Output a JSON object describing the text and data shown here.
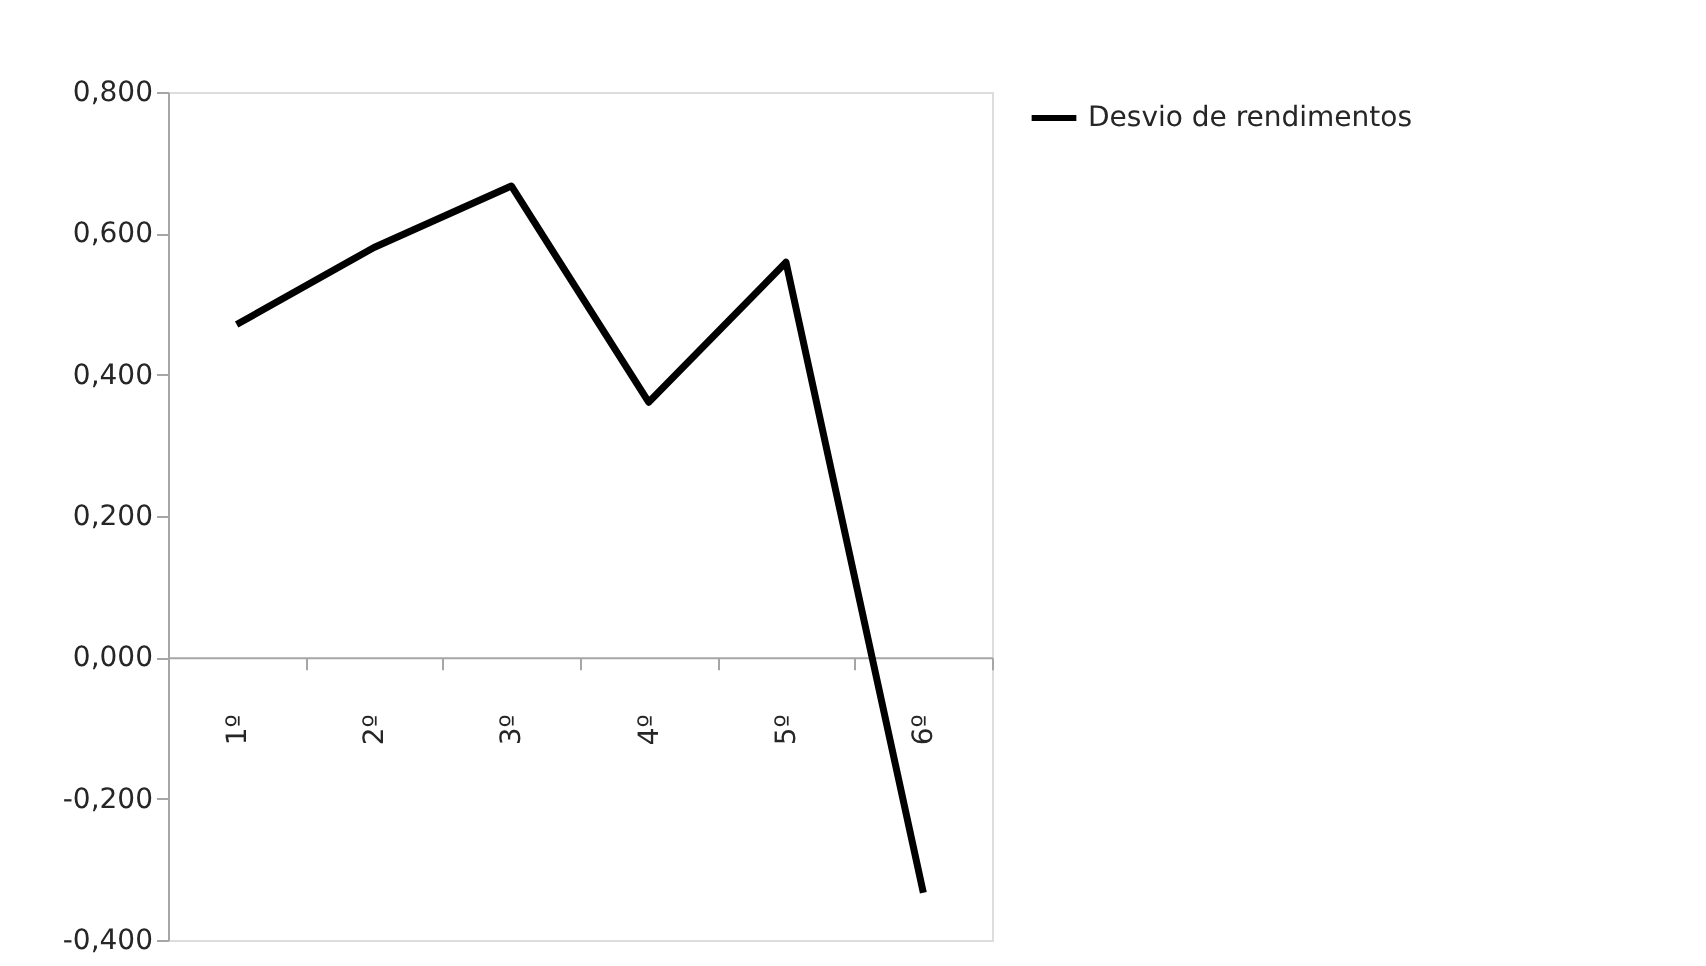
{
  "chart_data": {
    "type": "line",
    "categories": [
      "1º",
      "2º",
      "3º",
      "4º",
      "5º",
      "6º"
    ],
    "series": [
      {
        "name": "Desvio de rendimentos",
        "color": "#000000",
        "values": [
          0.471,
          0.58,
          0.667,
          0.361,
          0.559,
          -0.333
        ]
      }
    ],
    "ylim": [
      -0.4,
      0.8
    ],
    "yticks": [
      {
        "value": -0.4,
        "label": "-0,400"
      },
      {
        "value": -0.2,
        "label": "-0,200"
      },
      {
        "value": 0,
        "label": "0,000"
      },
      {
        "value": 0.2,
        "label": "0,200"
      },
      {
        "value": 0.4,
        "label": "0,400"
      },
      {
        "value": 0.6,
        "label": "0,600"
      },
      {
        "value": 0.8,
        "label": "0,800"
      }
    ],
    "grid": false,
    "legend": "right",
    "marker": "none",
    "line_style": "solid"
  }
}
